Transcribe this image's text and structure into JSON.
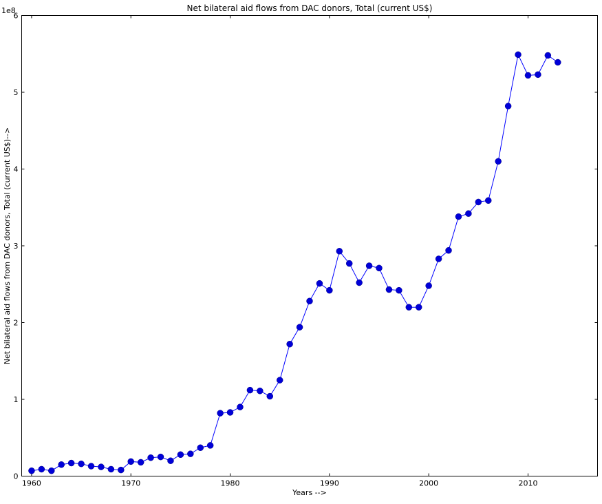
{
  "chart_data": {
    "type": "line",
    "title": "Net bilateral aid flows from DAC donors, Total (current US$)",
    "xlabel": "Years -->",
    "ylabel": "Net bilateral aid flows from DAC donors, Total (current US$)-->",
    "y_offset_label": "1e8",
    "xlim": [
      1959,
      2017
    ],
    "ylim": [
      0,
      6
    ],
    "x_ticks": [
      1960,
      1970,
      1980,
      1990,
      2000,
      2010
    ],
    "x_tick_labels": [
      "1960",
      "1970",
      "1980",
      "1990",
      "2000",
      "2010"
    ],
    "y_ticks": [
      0,
      1,
      2,
      3,
      4,
      5,
      6
    ],
    "y_tick_labels": [
      "0",
      "1",
      "2",
      "3",
      "4",
      "5",
      "6"
    ],
    "grid": false,
    "legend": "none",
    "colors": {
      "line": "#0000ff",
      "marker": "#0000d8"
    },
    "x": [
      1960,
      1961,
      1962,
      1963,
      1964,
      1965,
      1966,
      1967,
      1968,
      1969,
      1970,
      1971,
      1972,
      1973,
      1974,
      1975,
      1976,
      1977,
      1978,
      1979,
      1980,
      1981,
      1982,
      1983,
      1984,
      1985,
      1986,
      1987,
      1988,
      1989,
      1990,
      1991,
      1992,
      1993,
      1994,
      1995,
      1996,
      1997,
      1998,
      1999,
      2000,
      2001,
      2002,
      2003,
      2004,
      2005,
      2006,
      2007,
      2008,
      2009,
      2010,
      2011,
      2012,
      2013
    ],
    "values": [
      0.07,
      0.09,
      0.07,
      0.15,
      0.17,
      0.16,
      0.13,
      0.12,
      0.09,
      0.08,
      0.19,
      0.18,
      0.24,
      0.25,
      0.2,
      0.28,
      0.29,
      0.37,
      0.4,
      0.82,
      0.83,
      0.9,
      1.12,
      1.11,
      1.04,
      1.25,
      1.72,
      1.94,
      2.28,
      2.51,
      2.42,
      2.93,
      2.77,
      2.52,
      2.74,
      2.71,
      2.43,
      2.42,
      2.2,
      2.2,
      2.48,
      2.83,
      2.94,
      3.38,
      3.42,
      3.57,
      3.59,
      4.1,
      4.82,
      5.49,
      5.22,
      5.23,
      5.48,
      5.39
    ]
  }
}
